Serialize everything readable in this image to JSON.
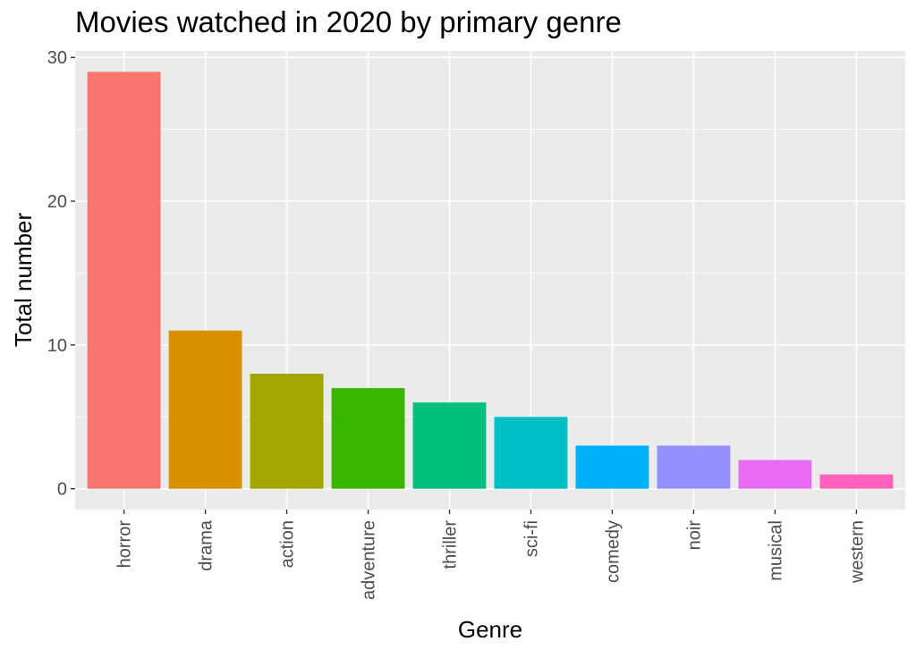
{
  "chart_data": {
    "type": "bar",
    "title": "Movies watched in 2020 by primary genre",
    "xlabel": "Genre",
    "ylabel": "Total number",
    "categories": [
      "horror",
      "drama",
      "action",
      "adventure",
      "thriller",
      "sci-fi",
      "comedy",
      "noir",
      "musical",
      "western"
    ],
    "values": [
      29,
      11,
      8,
      7,
      6,
      5,
      3,
      3,
      2,
      1
    ],
    "colors": [
      "#F8766D",
      "#D89000",
      "#A3A500",
      "#39B600",
      "#00BF7D",
      "#00BFC4",
      "#00B0F6",
      "#9590FF",
      "#E76BF3",
      "#FF62BC"
    ],
    "ylim": [
      -1.45,
      30.45
    ],
    "yticks": [
      0,
      10,
      20,
      30
    ],
    "ytick_labels": [
      "0",
      "10",
      "20",
      "30"
    ],
    "grid": true,
    "legend": "none"
  }
}
